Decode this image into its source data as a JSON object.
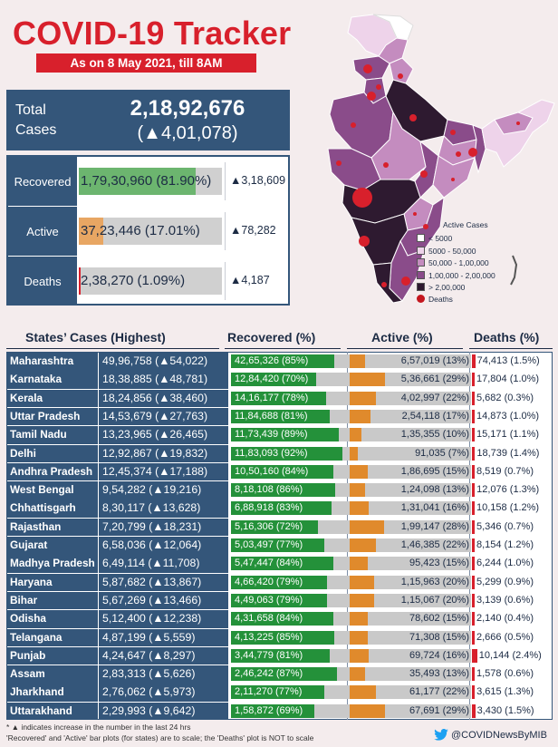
{
  "header": {
    "title": "COVID-19 Tracker",
    "subtitle": "As on 8 May 2021, till 8AM"
  },
  "total": {
    "label_line1": "Total",
    "label_line2": "Cases",
    "value": "2,18,92,676",
    "delta": "(▲4,01,078)"
  },
  "summary": [
    {
      "label": "Recovered",
      "text": "1,79,30,960 (81.90%)",
      "percent": 81.9,
      "color": "#6cb56f",
      "delta": "▲3,18,609"
    },
    {
      "label": "Active",
      "text": "37,23,446 (17.01%)",
      "percent": 17.01,
      "color": "#e8a663",
      "delta": "▲78,282"
    },
    {
      "label": "Deaths",
      "text": "2,38,270 (1.09%)",
      "percent": 1.09,
      "color": "#d8202c",
      "delta": "▲4,187"
    }
  ],
  "map_legend": {
    "title": "Active Cases",
    "items": [
      {
        "label": "< 5000",
        "color": "#ffffff"
      },
      {
        "label": "5000 - 50,000",
        "color": "#eed3ea"
      },
      {
        "label": "50,000 - 1,00,000",
        "color": "#c48cbf"
      },
      {
        "label": "1,00,000 - 2,00,000",
        "color": "#8a4c8a"
      },
      {
        "label": "> 2,00,000",
        "color": "#2e1a30"
      }
    ],
    "deaths_label": "Deaths"
  },
  "table_headers": {
    "states": "States’ Cases (Highest)",
    "recovered": "Recovered (%)",
    "active": "Active (%)",
    "deaths": "Deaths (%)"
  },
  "chart_data": {
    "type": "bar",
    "title": "States’ Cases (Highest)",
    "series_names": [
      "Recovered (%)",
      "Active (%)",
      "Deaths (%)"
    ],
    "rows": [
      {
        "state": "Maharashtra",
        "cases": "49,96,758 (▲54,022)",
        "recovered": "42,65,326 (85%)",
        "rec_pct": 85,
        "active": "6,57,019 (13%)",
        "act_pct": 13,
        "deaths": "74,413 (1.5%)",
        "dth_pct": 1.5
      },
      {
        "state": "Karnataka",
        "cases": "18,38,885 (▲48,781)",
        "recovered": "12,84,420 (70%)",
        "rec_pct": 70,
        "active": "5,36,661 (29%)",
        "act_pct": 29,
        "deaths": "17,804 (1.0%)",
        "dth_pct": 1.0
      },
      {
        "state": "Kerala",
        "cases": "18,24,856 (▲38,460)",
        "recovered": "14,16,177 (78%)",
        "rec_pct": 78,
        "active": "4,02,997 (22%)",
        "act_pct": 22,
        "deaths": "5,682 (0.3%)",
        "dth_pct": 0.3
      },
      {
        "state": "Uttar Pradesh",
        "cases": "14,53,679 (▲27,763)",
        "recovered": "11,84,688 (81%)",
        "rec_pct": 81,
        "active": "2,54,118 (17%)",
        "act_pct": 17,
        "deaths": "14,873 (1.0%)",
        "dth_pct": 1.0
      },
      {
        "state": "Tamil Nadu",
        "cases": "13,23,965 (▲26,465)",
        "recovered": "11,73,439 (89%)",
        "rec_pct": 89,
        "active": "1,35,355 (10%)",
        "act_pct": 10,
        "deaths": "15,171 (1.1%)",
        "dth_pct": 1.1
      },
      {
        "state": "Delhi",
        "cases": "12,92,867 (▲19,832)",
        "recovered": "11,83,093 (92%)",
        "rec_pct": 92,
        "active": "91,035 (7%)",
        "act_pct": 7,
        "deaths": "18,739 (1.4%)",
        "dth_pct": 1.4
      },
      {
        "state": "Andhra Pradesh",
        "cases": "12,45,374 (▲17,188)",
        "recovered": "10,50,160 (84%)",
        "rec_pct": 84,
        "active": "1,86,695 (15%)",
        "act_pct": 15,
        "deaths": "8,519 (0.7%)",
        "dth_pct": 0.7
      },
      {
        "state": "West Bengal",
        "cases": "9,54,282 (▲19,216)",
        "recovered": "8,18,108 (86%)",
        "rec_pct": 86,
        "active": "1,24,098 (13%)",
        "act_pct": 13,
        "deaths": "12,076 (1.3%)",
        "dth_pct": 1.3
      },
      {
        "state": "Chhattisgarh",
        "cases": "8,30,117 (▲13,628)",
        "recovered": "6,88,918 (83%)",
        "rec_pct": 83,
        "active": "1,31,041 (16%)",
        "act_pct": 16,
        "deaths": "10,158 (1.2%)",
        "dth_pct": 1.2
      },
      {
        "state": "Rajasthan",
        "cases": "7,20,799 (▲18,231)",
        "recovered": "5,16,306 (72%)",
        "rec_pct": 72,
        "active": "1,99,147 (28%)",
        "act_pct": 28,
        "deaths": "5,346 (0.7%)",
        "dth_pct": 0.7
      },
      {
        "state": "Gujarat",
        "cases": "6,58,036 (▲12,064)",
        "recovered": "5,03,497 (77%)",
        "rec_pct": 77,
        "active": "1,46,385 (22%)",
        "act_pct": 22,
        "deaths": "8,154 (1.2%)",
        "dth_pct": 1.2
      },
      {
        "state": "Madhya Pradesh",
        "cases": "6,49,114 (▲11,708)",
        "recovered": "5,47,447 (84%)",
        "rec_pct": 84,
        "active": "95,423 (15%)",
        "act_pct": 15,
        "deaths": "6,244 (1.0%)",
        "dth_pct": 1.0
      },
      {
        "state": "Haryana",
        "cases": "5,87,682 (▲13,867)",
        "recovered": "4,66,420 (79%)",
        "rec_pct": 79,
        "active": "1,15,963 (20%)",
        "act_pct": 20,
        "deaths": "5,299 (0.9%)",
        "dth_pct": 0.9
      },
      {
        "state": "Bihar",
        "cases": "5,67,269 (▲13,466)",
        "recovered": "4,49,063 (79%)",
        "rec_pct": 79,
        "active": "1,15,067 (20%)",
        "act_pct": 20,
        "deaths": "3,139 (0.6%)",
        "dth_pct": 0.6
      },
      {
        "state": "Odisha",
        "cases": "5,12,400 (▲12,238)",
        "recovered": "4,31,658 (84%)",
        "rec_pct": 84,
        "active": "78,602 (15%)",
        "act_pct": 15,
        "deaths": "2,140 (0.4%)",
        "dth_pct": 0.4
      },
      {
        "state": "Telangana",
        "cases": "4,87,199 (▲5,559)",
        "recovered": "4,13,225 (85%)",
        "rec_pct": 85,
        "active": "71,308 (15%)",
        "act_pct": 15,
        "deaths": "2,666 (0.5%)",
        "dth_pct": 0.5
      },
      {
        "state": "Punjab",
        "cases": "4,24,647 (▲8,297)",
        "recovered": "3,44,779 (81%)",
        "rec_pct": 81,
        "active": "69,724 (16%)",
        "act_pct": 16,
        "deaths": "10,144 (2.4%)",
        "dth_pct": 2.4
      },
      {
        "state": "Assam",
        "cases": "2,83,313 (▲5,626)",
        "recovered": "2,46,242 (87%)",
        "rec_pct": 87,
        "active": "35,493 (13%)",
        "act_pct": 13,
        "deaths": "1,578 (0.6%)",
        "dth_pct": 0.6
      },
      {
        "state": "Jharkhand",
        "cases": "2,76,062 (▲5,973)",
        "recovered": "2,11,270 (77%)",
        "rec_pct": 77,
        "active": "61,177 (22%)",
        "act_pct": 22,
        "deaths": "3,615 (1.3%)",
        "dth_pct": 1.3
      },
      {
        "state": "Uttarakhand",
        "cases": "2,29,993 (▲9,642)",
        "recovered": "1,58,872 (69%)",
        "rec_pct": 69,
        "active": "67,691 (29%)",
        "act_pct": 29,
        "deaths": "3,430 (1.5%)",
        "dth_pct": 1.5
      }
    ]
  },
  "footnotes": {
    "line1": "* ▲ indicates increase in the number in the last 24 hrs",
    "line2": "'Recovered' and 'Active' bar plots (for states) are to scale; the 'Deaths' plot is NOT to scale"
  },
  "twitter": {
    "handle": "@COVIDNewsByMIB",
    "icon": "twitter-bird-icon"
  }
}
